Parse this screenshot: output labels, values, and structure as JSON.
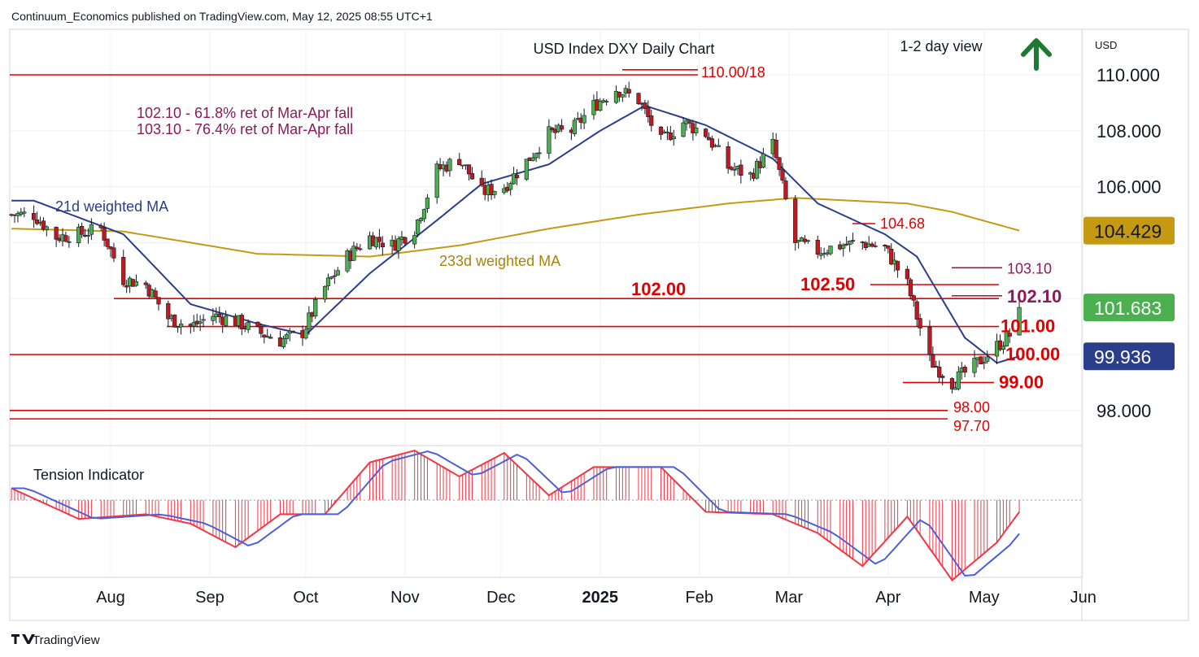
{
  "header": {
    "publisher_line": "Continuum_Economics published on TradingView.com, May 12, 2025 08:55 UTC+1"
  },
  "footer": {
    "brand": "TradingView"
  },
  "colors": {
    "up": "#4caf50",
    "down": "#c2181f",
    "ma21": "#2a3e8c",
    "ma233": "#c49a12",
    "level_red": "#e00000",
    "purple": "#8b1a5a",
    "arrow_green": "#1e7a32",
    "tension_red": "#f23645",
    "tension_blue": "#4a5fd8",
    "grid": "#eef0f3"
  },
  "chart_data": {
    "type": "candlestick",
    "title": "USD Index DXY Daily Chart",
    "subtitle": "1-2 day view",
    "direction_icon": "up-arrow-icon",
    "currency": "USD",
    "y_ticks": [
      "110.000",
      "108.000",
      "106.000",
      "98.000"
    ],
    "ylim": [
      97.3,
      111.1
    ],
    "x_ticks": [
      "Aug",
      "Sep",
      "Oct",
      "Nov",
      "Dec",
      "2025",
      "Feb",
      "Mar",
      "Apr",
      "May",
      "Jun"
    ],
    "grid": true,
    "annotations": {
      "ma21_label": "21d weighted MA",
      "ma233_label": "233d weighted MA",
      "fib_note_1": "102.10 - 61.8% ret of Mar-Apr fall",
      "fib_note_2": "103.10 - 76.4% ret of Mar-Apr fall"
    },
    "levels": [
      {
        "label": "110.00/18",
        "value": 110.0
      },
      {
        "label": "104.68",
        "value": 104.68
      },
      {
        "label": "103.10",
        "value": 103.1
      },
      {
        "label": "102.50",
        "value": 102.5
      },
      {
        "label": "102.10",
        "value": 102.1
      },
      {
        "label": "102.00",
        "value": 102.0
      },
      {
        "label": "101.00",
        "value": 101.0
      },
      {
        "label": "100.00",
        "value": 100.0
      },
      {
        "label": "99.00",
        "value": 99.0
      },
      {
        "label": "98.00",
        "value": 98.0
      },
      {
        "label": "97.70",
        "value": 97.7
      }
    ],
    "price_tags": [
      {
        "name": "ma233",
        "label": "104.429",
        "value": 104.429
      },
      {
        "name": "last",
        "label": "101.683",
        "value": 101.683
      },
      {
        "name": "ma21",
        "label": "99.936",
        "value": 99.936
      }
    ],
    "anchors": [
      [
        "2024-07-08",
        105.0
      ],
      [
        "2024-07-15",
        104.2
      ],
      [
        "2024-07-22",
        104.3
      ],
      [
        "2024-07-29",
        104.5
      ],
      [
        "2024-08-05",
        102.7
      ],
      [
        "2024-08-12",
        102.5
      ],
      [
        "2024-08-19",
        101.3
      ],
      [
        "2024-08-26",
        101.0
      ],
      [
        "2024-09-02",
        101.4
      ],
      [
        "2024-09-09",
        101.2
      ],
      [
        "2024-09-16",
        100.8
      ],
      [
        "2024-09-23",
        100.5
      ],
      [
        "2024-09-30",
        100.8
      ],
      [
        "2024-10-07",
        102.4
      ],
      [
        "2024-10-14",
        103.5
      ],
      [
        "2024-10-21",
        104.2
      ],
      [
        "2024-10-28",
        103.9
      ],
      [
        "2024-11-04",
        104.5
      ],
      [
        "2024-11-11",
        106.6
      ],
      [
        "2024-11-18",
        107.0
      ],
      [
        "2024-11-25",
        105.8
      ],
      [
        "2024-12-02",
        106.0
      ],
      [
        "2024-12-09",
        106.9
      ],
      [
        "2024-12-16",
        107.9
      ],
      [
        "2024-12-23",
        108.0
      ],
      [
        "2024-12-30",
        108.9
      ],
      [
        "2025-01-06",
        109.5
      ],
      [
        "2025-01-13",
        109.1
      ],
      [
        "2025-01-20",
        107.6
      ],
      [
        "2025-01-27",
        108.3
      ],
      [
        "2025-02-03",
        107.9
      ],
      [
        "2025-02-10",
        106.7
      ],
      [
        "2025-02-17",
        106.4
      ],
      [
        "2025-02-24",
        107.5
      ],
      [
        "2025-03-03",
        104.0
      ],
      [
        "2025-03-10",
        103.7
      ],
      [
        "2025-03-17",
        103.9
      ],
      [
        "2025-03-24",
        104.0
      ],
      [
        "2025-03-31",
        103.8
      ],
      [
        "2025-04-07",
        102.5
      ],
      [
        "2025-04-14",
        99.8
      ],
      [
        "2025-04-21",
        99.0
      ],
      [
        "2025-04-28",
        99.6
      ],
      [
        "2025-05-05",
        100.3
      ],
      [
        "2025-05-09",
        100.7
      ],
      [
        "2025-05-12",
        101.683
      ]
    ],
    "ma21_anchors": [
      [
        "2024-07-08",
        105.5
      ],
      [
        "2024-08-05",
        104.3
      ],
      [
        "2024-08-26",
        101.8
      ],
      [
        "2024-09-16",
        101.1
      ],
      [
        "2024-10-01",
        100.7
      ],
      [
        "2024-10-21",
        102.9
      ],
      [
        "2024-11-11",
        104.8
      ],
      [
        "2024-11-25",
        106.1
      ],
      [
        "2024-12-16",
        106.8
      ],
      [
        "2025-01-01",
        108.0
      ],
      [
        "2025-01-15",
        108.9
      ],
      [
        "2025-02-03",
        108.2
      ],
      [
        "2025-02-24",
        107.0
      ],
      [
        "2025-03-10",
        105.4
      ],
      [
        "2025-03-31",
        104.3
      ],
      [
        "2025-04-10",
        103.5
      ],
      [
        "2025-04-25",
        100.6
      ],
      [
        "2025-05-05",
        99.7
      ],
      [
        "2025-05-12",
        99.936
      ]
    ],
    "ma233_anchors": [
      [
        "2024-07-01",
        104.5
      ],
      [
        "2024-08-05",
        104.4
      ],
      [
        "2024-09-16",
        103.6
      ],
      [
        "2024-10-21",
        103.5
      ],
      [
        "2024-11-18",
        103.9
      ],
      [
        "2024-12-16",
        104.5
      ],
      [
        "2025-01-13",
        105.0
      ],
      [
        "2025-02-10",
        105.4
      ],
      [
        "2025-03-03",
        105.6
      ],
      [
        "2025-04-07",
        105.4
      ],
      [
        "2025-04-21",
        105.1
      ],
      [
        "2025-05-12",
        104.429
      ]
    ],
    "tension_indicator": {
      "label": "Tension Indicator",
      "anchors": [
        [
          "2024-07-01",
          0.25
        ],
        [
          "2024-07-22",
          -0.4
        ],
        [
          "2024-08-12",
          -0.3
        ],
        [
          "2024-08-26",
          -0.5
        ],
        [
          "2024-09-09",
          -1.0
        ],
        [
          "2024-09-23",
          -0.3
        ],
        [
          "2024-10-07",
          -0.3
        ],
        [
          "2024-10-21",
          0.8
        ],
        [
          "2024-11-04",
          1.05
        ],
        [
          "2024-11-18",
          0.5
        ],
        [
          "2024-12-02",
          1.0
        ],
        [
          "2024-12-16",
          0.1
        ],
        [
          "2024-12-30",
          0.7
        ],
        [
          "2025-01-20",
          0.7
        ],
        [
          "2025-02-03",
          -0.25
        ],
        [
          "2025-02-24",
          -0.3
        ],
        [
          "2025-03-10",
          -0.7
        ],
        [
          "2025-03-24",
          -1.4
        ],
        [
          "2025-04-07",
          -0.35
        ],
        [
          "2025-04-21",
          -1.7
        ],
        [
          "2025-05-05",
          -0.9
        ],
        [
          "2025-05-12",
          -0.25
        ]
      ]
    }
  }
}
